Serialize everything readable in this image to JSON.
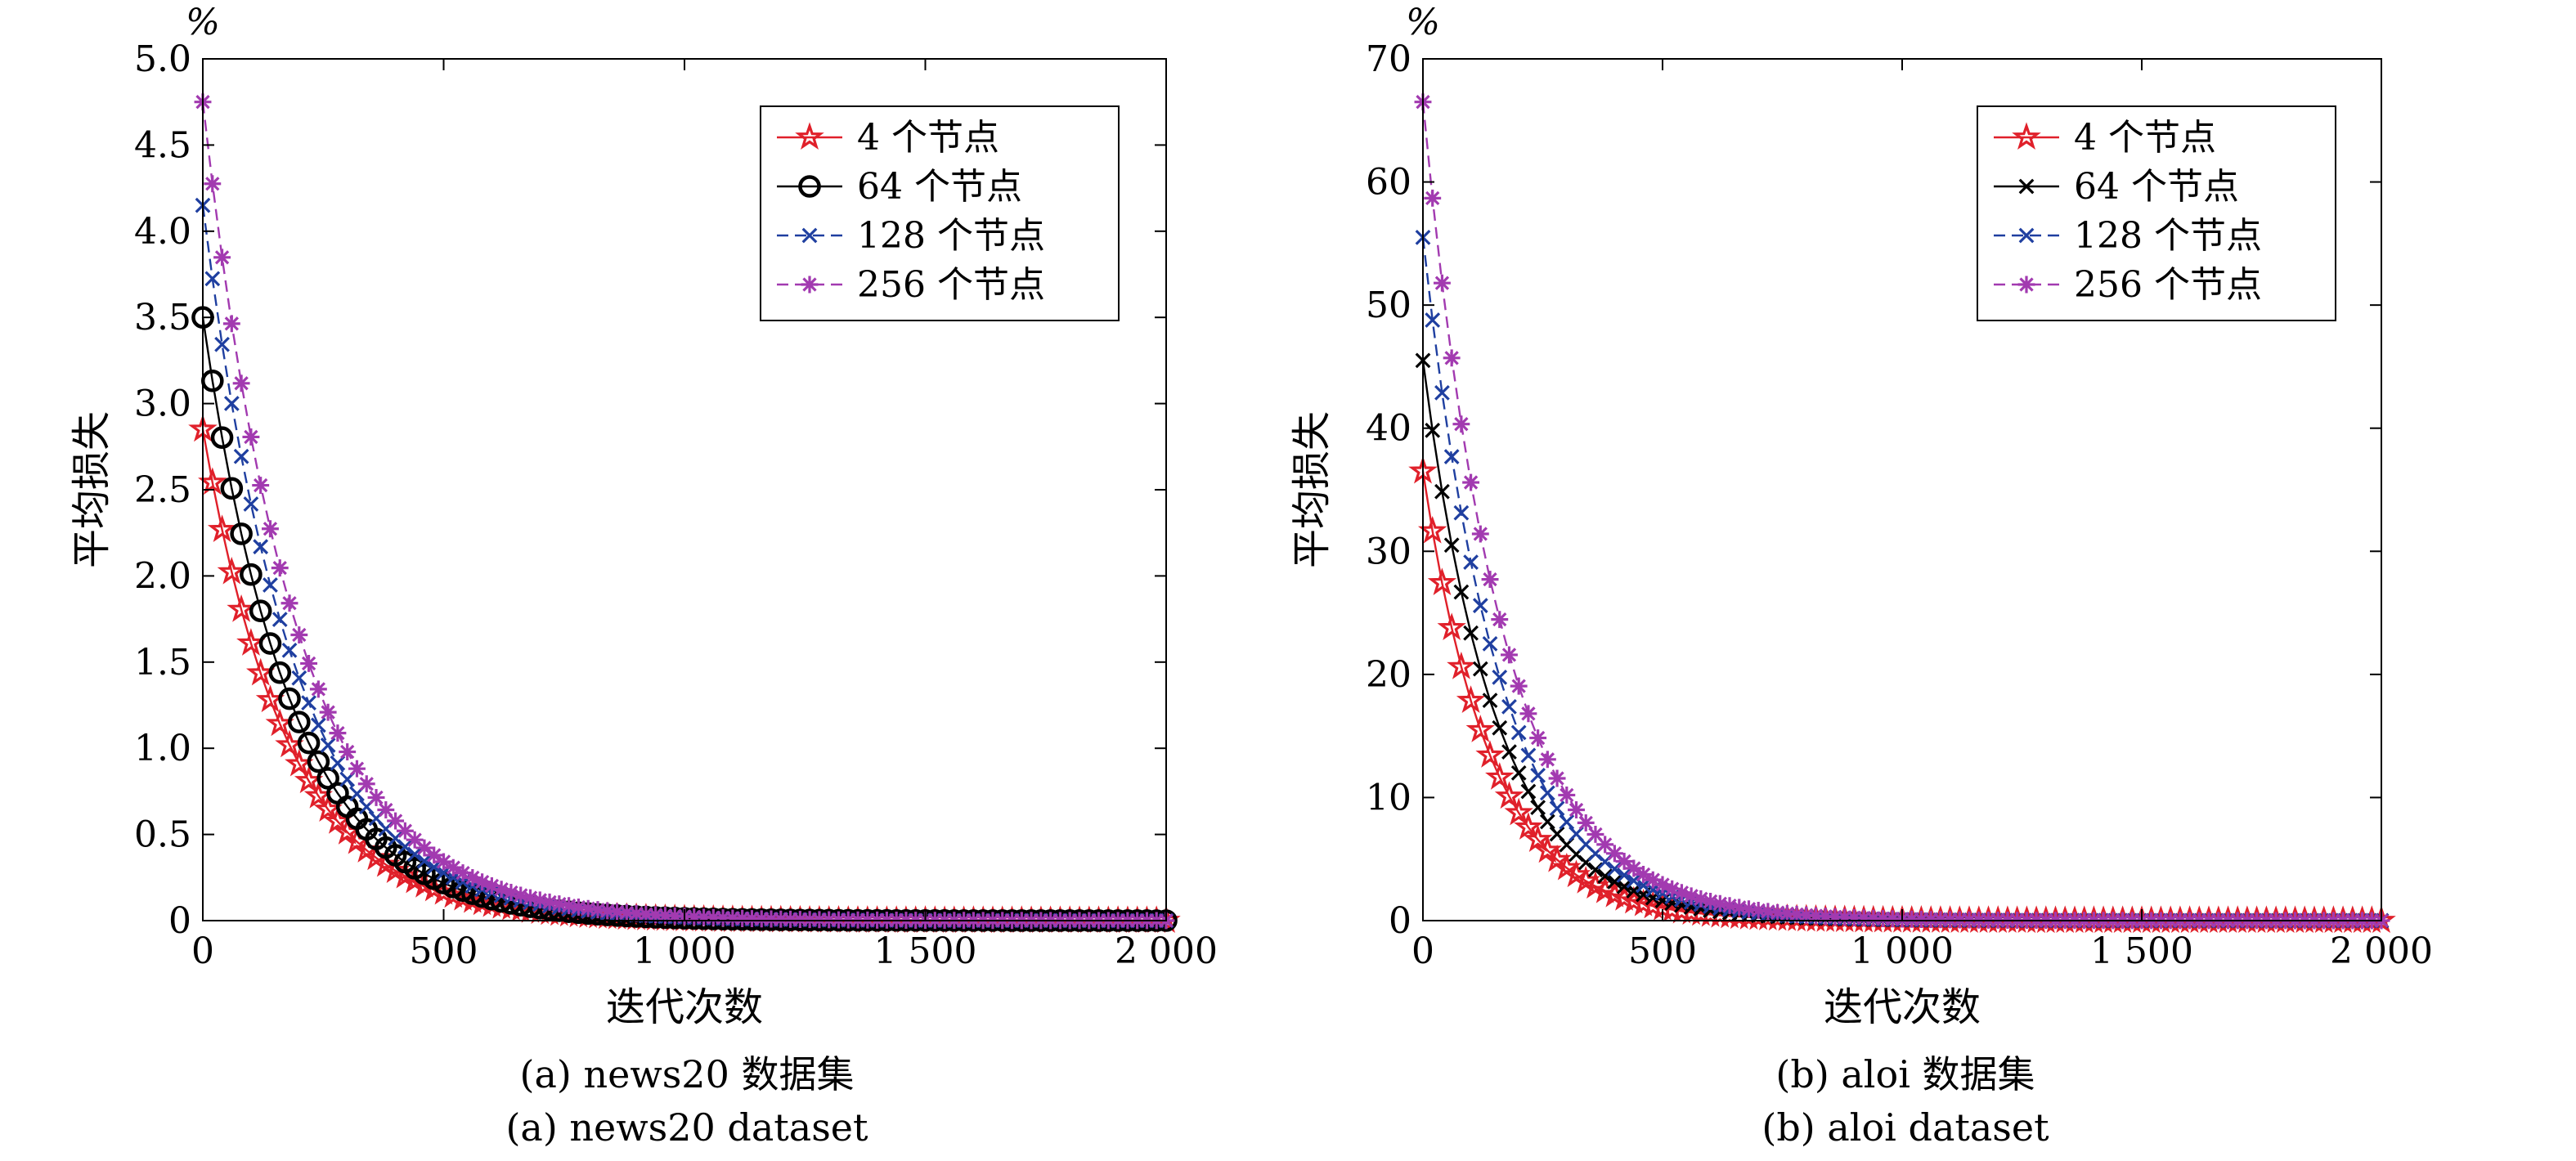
{
  "figure": {
    "panels": [
      {
        "caption_cn": "(a) news20 数据集",
        "caption_en": "(a) news20 dataset"
      },
      {
        "caption_cn": "(b) aloi 数据集",
        "caption_en": "(b) aloi dataset"
      }
    ]
  },
  "chart_data": [
    {
      "type": "line",
      "title": "",
      "xlabel": "迭代次数",
      "ylabel": "平均损失",
      "y_unit": "%",
      "xlim": [
        0,
        2000
      ],
      "ylim": [
        0,
        5
      ],
      "x_ticks": [
        0,
        500,
        1000,
        1500,
        2000
      ],
      "x_tick_labels": [
        "0",
        "500",
        "1 000",
        "1 500",
        "2 000"
      ],
      "y_ticks": [
        0,
        0.5,
        1,
        1.5,
        2,
        2.5,
        3,
        3.5,
        4,
        4.5,
        5
      ],
      "y_tick_labels": [
        "0",
        "0.5",
        "1.0",
        "1.5",
        "2.0",
        "2.5",
        "3.0",
        "3.5",
        "4.0",
        "4.5",
        "5.0"
      ],
      "grid": false,
      "legend_position": "top-right",
      "sampling": "markers every 20 iterations from x=0 to x=2000; y = y0 * exp(-x / tau)",
      "series": [
        {
          "name": "4 个节点",
          "color": "#e0202a",
          "marker": "star",
          "line_style": "solid",
          "y0": 2.85,
          "tau": 175
        },
        {
          "name": "64 个节点",
          "color": "#000000",
          "marker": "circle",
          "line_style": "solid",
          "y0": 3.5,
          "tau": 180
        },
        {
          "name": "128 个节点",
          "color": "#1f3fa0",
          "marker": "x",
          "line_style": "dashed",
          "y0": 4.15,
          "tau": 185
        },
        {
          "name": "256 个节点",
          "color": "#a23ab0",
          "marker": "asterisk",
          "line_style": "dashed",
          "y0": 4.75,
          "tau": 190
        }
      ]
    },
    {
      "type": "line",
      "title": "",
      "xlabel": "迭代次数",
      "ylabel": "平均损失",
      "y_unit": "%",
      "xlim": [
        0,
        2000
      ],
      "ylim": [
        0,
        70
      ],
      "x_ticks": [
        0,
        500,
        1000,
        1500,
        2000
      ],
      "x_tick_labels": [
        "0",
        "500",
        "1 000",
        "1 500",
        "2 000"
      ],
      "y_ticks": [
        0,
        10,
        20,
        30,
        40,
        50,
        60,
        70
      ],
      "y_tick_labels": [
        "0",
        "10",
        "20",
        "30",
        "40",
        "50",
        "60",
        "70"
      ],
      "grid": false,
      "legend_position": "top-right",
      "sampling": "markers every 20 iterations from x=0 to x=2000; y = y0 * exp(-x / tau)",
      "series": [
        {
          "name": "4 个节点",
          "color": "#e0202a",
          "marker": "star",
          "line_style": "solid",
          "y0": 36.5,
          "tau": 140
        },
        {
          "name": "64 个节点",
          "color": "#000000",
          "marker": "x",
          "line_style": "solid",
          "y0": 45.5,
          "tau": 150
        },
        {
          "name": "128 个节点",
          "color": "#1f3fa0",
          "marker": "x",
          "line_style": "dashed",
          "y0": 55.5,
          "tau": 155
        },
        {
          "name": "256 个节点",
          "color": "#a23ab0",
          "marker": "asterisk",
          "line_style": "dashed",
          "y0": 66.5,
          "tau": 160
        }
      ]
    }
  ]
}
